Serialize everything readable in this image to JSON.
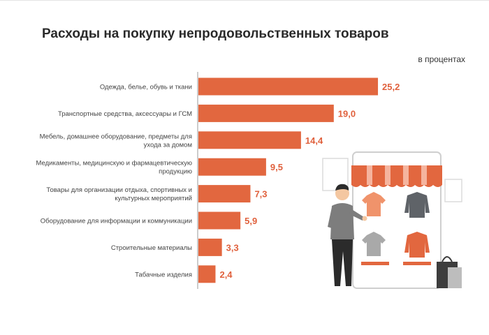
{
  "chart_data": {
    "type": "bar",
    "orientation": "horizontal",
    "title": "Расходы на покупку непродовольственных товаров",
    "unit": "в процентах",
    "categories": [
      [
        "Одежда, белье, обувь и ткани"
      ],
      [
        "Транспортные средства, аксессуары и ГСМ"
      ],
      [
        "Мебель, домашнее оборудование, предметы для",
        "ухода за домом"
      ],
      [
        "Медикаменты, медицинскую и фармацевтическую",
        "продукцию"
      ],
      [
        "Товары для организации отдыха, спортивных и",
        "культурных мероприятий"
      ],
      [
        "Оборудование для информации и коммуникации"
      ],
      [
        "Строительные материалы"
      ],
      [
        "Табачные изделия"
      ]
    ],
    "values": [
      25.2,
      19.0,
      14.4,
      9.5,
      7.3,
      5.9,
      3.3,
      2.4
    ],
    "value_labels": [
      "25,2",
      "19,0",
      "14,4",
      "9,5",
      "7,3",
      "5,9",
      "3,3",
      "2,4"
    ],
    "xlim": [
      0,
      30
    ],
    "grid": false,
    "legend": "none"
  },
  "colors": {
    "bar": "#e2673f",
    "value_text": "#e0603c",
    "axis": "#9a9a9a"
  },
  "illustration": {
    "type": "decorative",
    "depicts": "man shopping on a tablet storefront with clothing items and shopping bags"
  }
}
